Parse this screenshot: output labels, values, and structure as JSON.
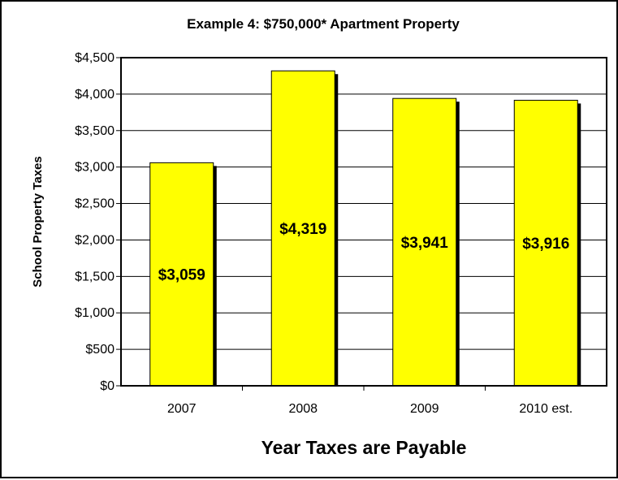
{
  "chart_data": {
    "type": "bar",
    "title": "Example 4:  $750,000* Apartment Property",
    "xlabel": "Year Taxes are Payable",
    "ylabel": "School Property Taxes",
    "categories": [
      "2007",
      "2008",
      "2009",
      "2010 est."
    ],
    "values": [
      3059,
      4319,
      3941,
      3916
    ],
    "data_labels": [
      "$3,059",
      "$4,319",
      "$3,941",
      "$3,916"
    ],
    "ylim": [
      0,
      4500
    ],
    "yticks": [
      0,
      500,
      1000,
      1500,
      2000,
      2500,
      3000,
      3500,
      4000,
      4500
    ],
    "ytick_labels": [
      "$0",
      "$500",
      "$1,000",
      "$1,500",
      "$2,000",
      "$2,500",
      "$3,000",
      "$3,500",
      "$4,000",
      "$4,500"
    ],
    "grid": true,
    "legend": "none",
    "colors": {
      "bar_fill": "#FFFF00",
      "bar_stroke": "#000000",
      "bar_shadow": "#000000",
      "gridline": "#000000",
      "background": "#FFFFFF"
    }
  }
}
